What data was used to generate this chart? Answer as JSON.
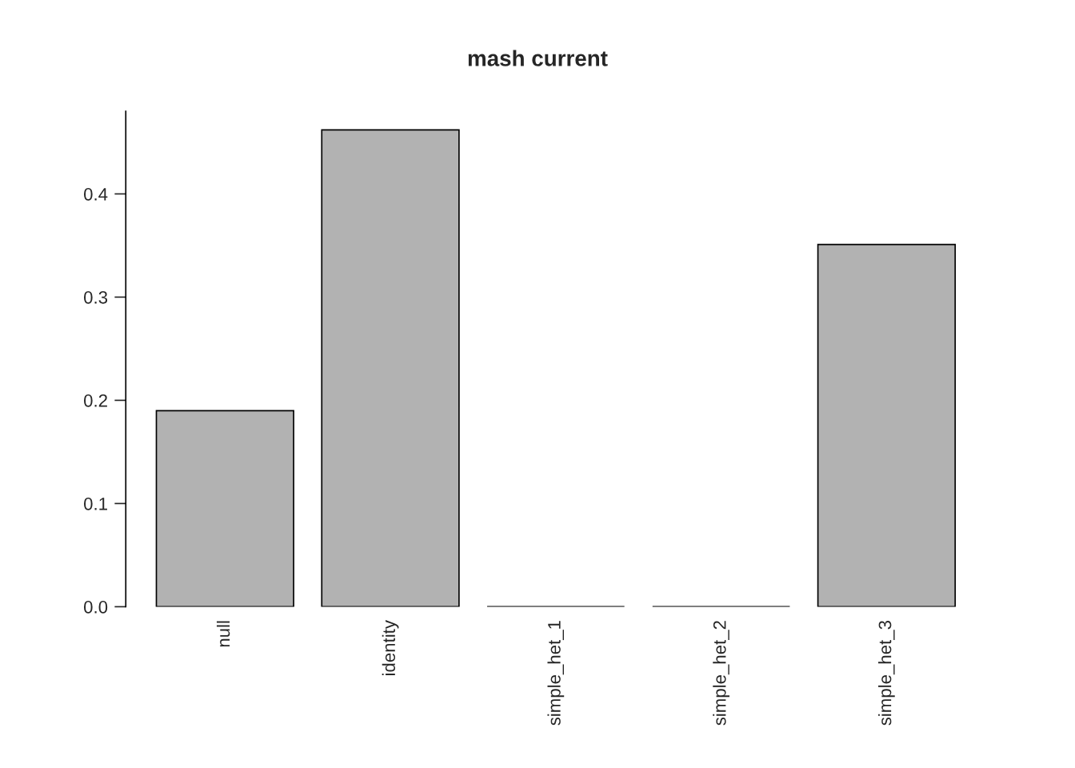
{
  "chart_data": {
    "type": "bar",
    "title": "mash current",
    "categories": [
      "null",
      "identity",
      "simple_het_1",
      "simple_het_2",
      "simple_het_3"
    ],
    "values": [
      0.19,
      0.462,
      0,
      0,
      0.351
    ],
    "color": "#b2b2b2",
    "ylim": [
      0,
      0.48
    ],
    "yticks": [
      {
        "value": 0,
        "label": "0.0"
      },
      0.1,
      0.2,
      0.3,
      0.4
    ],
    "grid": false
  }
}
